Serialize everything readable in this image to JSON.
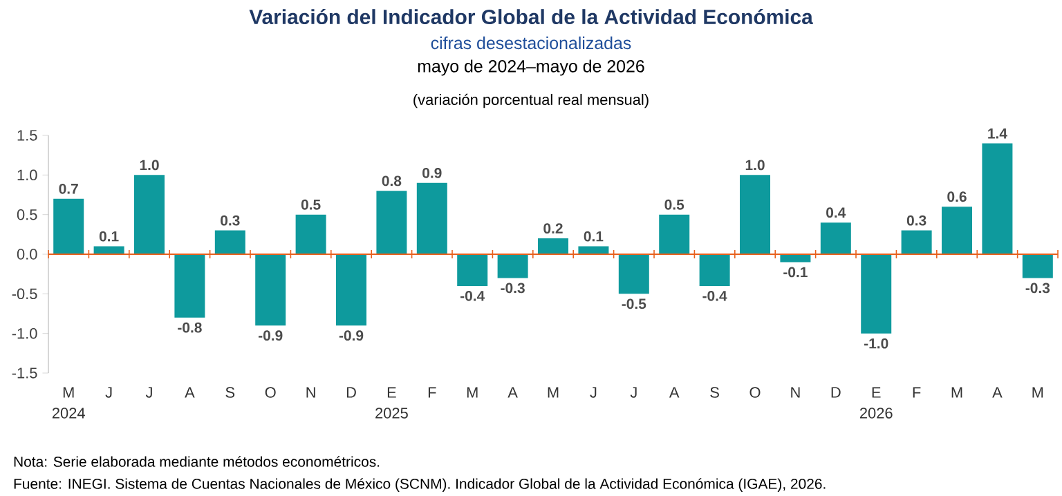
{
  "chart_data": {
    "type": "bar",
    "title": "Variación del Indicador Global de la Actividad Económica",
    "subtitle": "cifras desestacionalizadas",
    "categories": [
      "M",
      "J",
      "J",
      "A",
      "S",
      "O",
      "N",
      "D",
      "E",
      "F",
      "M",
      "A",
      "M",
      "J",
      "J",
      "A",
      "S",
      "O",
      "N",
      "D",
      "E",
      "F",
      "M",
      "A",
      "M"
    ],
    "values": [
      0.7,
      0.1,
      1.0,
      -0.8,
      0.3,
      -0.9,
      0.5,
      -0.9,
      0.8,
      0.9,
      -0.4,
      -0.3,
      0.2,
      0.1,
      -0.5,
      0.5,
      -0.4,
      1.0,
      -0.1,
      0.4,
      -1.0,
      0.3,
      0.6,
      1.4,
      -0.3
    ],
    "color": "#0e9a9d",
    "ylim": [
      -1.5,
      1.5
    ],
    "yticks": [
      {
        "value": -1.5,
        "label": "-1.5"
      },
      {
        "value": -1,
        "label": "-1.0"
      },
      {
        "value": -0.5,
        "label": "-0.5"
      },
      {
        "value": 0,
        "label": "0.0"
      },
      {
        "value": 0.5,
        "label": "0.5"
      },
      {
        "value": 1,
        "label": "1.0"
      },
      {
        "value": 1.5,
        "label": "1.5"
      }
    ],
    "value_labels": [
      "0.7",
      "0.1",
      "1.0",
      "-0.8",
      "0.3",
      "-0.9",
      "0.5",
      "-0.9",
      "0.8",
      "0.9",
      "-0.4",
      "-0.3",
      "0.2",
      "0.1",
      "-0.5",
      "0.5",
      "-0.4",
      "1.0",
      "-0.1",
      "0.4",
      "-1.0",
      "0.3",
      "0.6",
      "1.4",
      "-0.3"
    ],
    "ref_lines": [
      {
        "axis": "y",
        "value": 0,
        "color": "#e8601c"
      }
    ],
    "grid": false,
    "annotations": [
      "mayo de 2024–mayo de 2026",
      "(variación porcentual real mensual)",
      "Nota:     Serie elaborada mediante métodos econométricos.",
      "Fuente: INEGI. Sistema de Cuentas Nacionales de México (SCNM). Indicador Global de la Actividad Económica (IGAE), 2026.",
      "2024",
      "2025",
      "2026"
    ]
  }
}
